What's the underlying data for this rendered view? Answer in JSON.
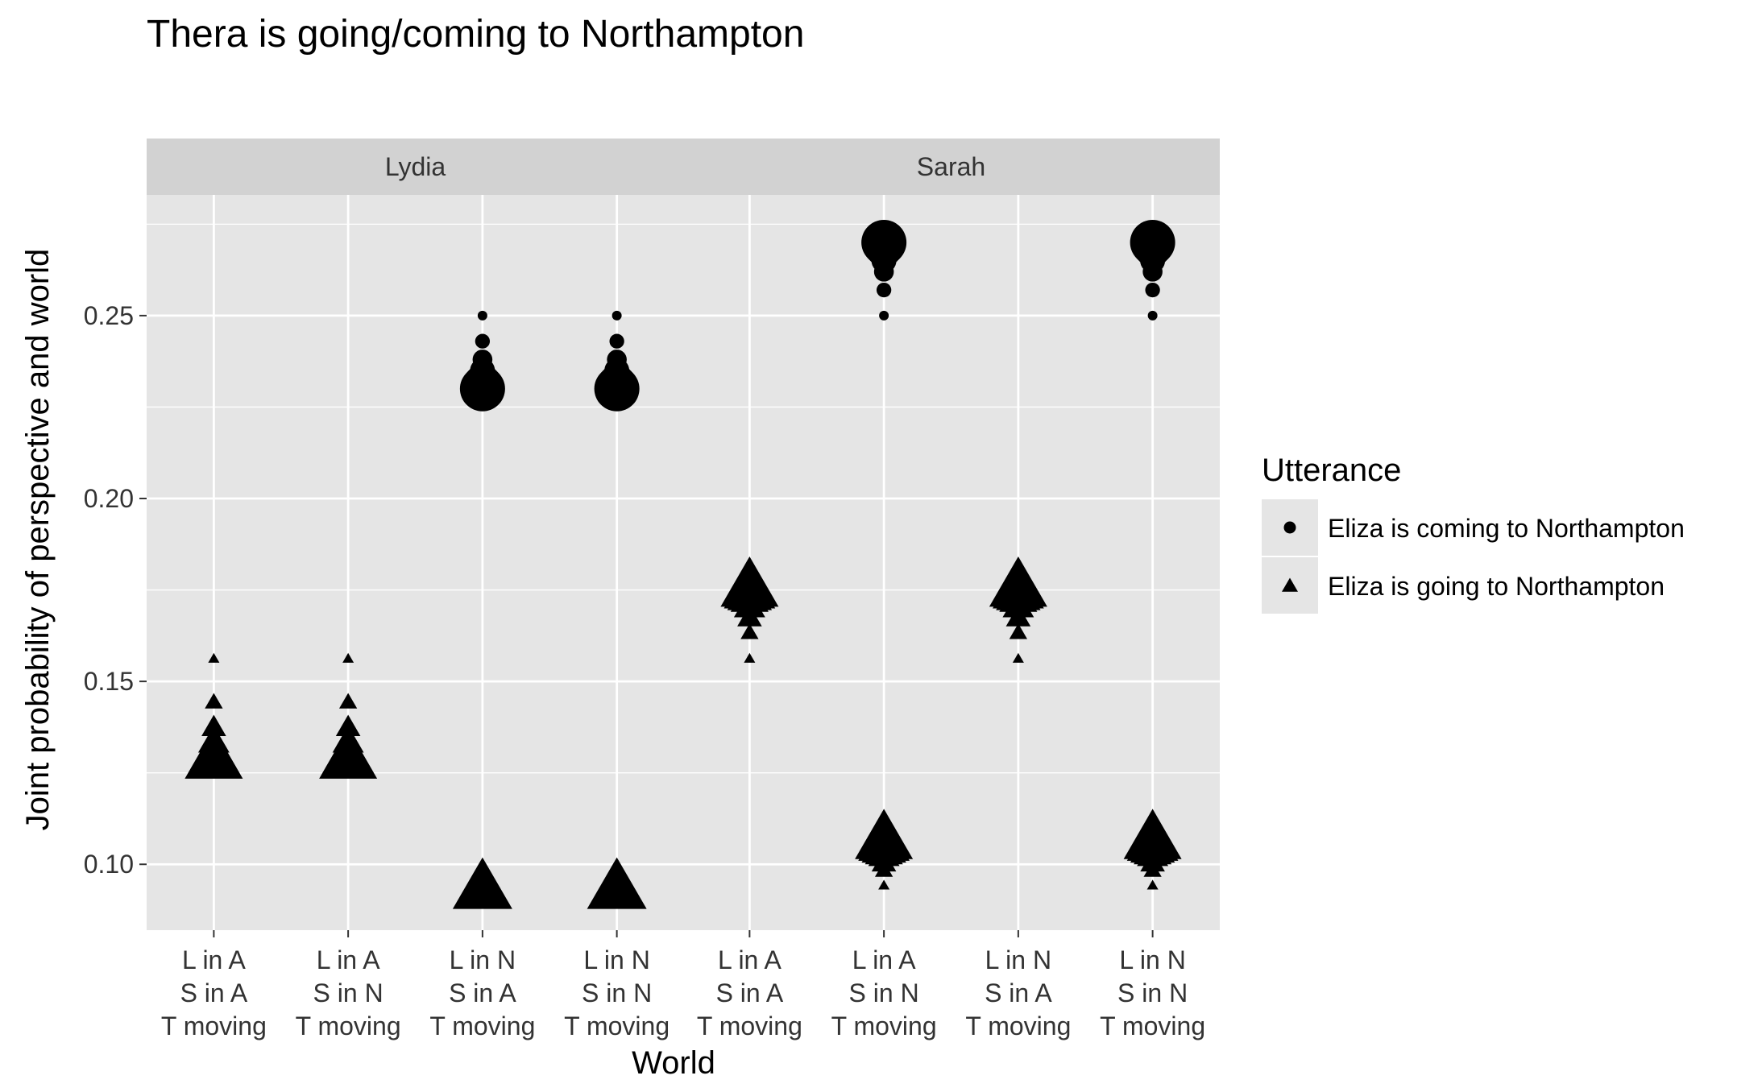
{
  "chart_data": {
    "type": "scatter",
    "title": "Thera is going/coming to Northampton",
    "xlabel": "World",
    "ylabel": "Joint probability of perspective and world",
    "ylim": [
      0.082,
      0.283
    ],
    "yticks": [
      0.1,
      0.15,
      0.2,
      0.25
    ],
    "ytick_labels": [
      "0.10",
      "0.15",
      "0.20",
      "0.25"
    ],
    "grid": true,
    "legend": {
      "title": "Utterance",
      "placement": "right",
      "entries": [
        {
          "label": "Eliza is coming to Northampton",
          "shape": "circle"
        },
        {
          "label": "Eliza is going to Northampton",
          "shape": "triangle"
        }
      ]
    },
    "categories": [
      [
        "L in A",
        "S in A",
        "T moving"
      ],
      [
        "L in A",
        "S in N",
        "T moving"
      ],
      [
        "L in N",
        "S in A",
        "T moving"
      ],
      [
        "L in N",
        "S in N",
        "T moving"
      ]
    ],
    "panels": [
      {
        "name": "Lydia",
        "series": [
          {
            "name": "Eliza is coming to Northampton",
            "shape": "circle",
            "points": [
              {
                "x": 3,
                "y": [
                  0.25,
                  0.243,
                  0.238,
                  0.235,
                  0.233,
                  0.232,
                  0.231,
                  0.23
                ]
              },
              {
                "x": 4,
                "y": [
                  0.25,
                  0.243,
                  0.238,
                  0.235,
                  0.233,
                  0.232,
                  0.231,
                  0.23
                ]
              }
            ]
          },
          {
            "name": "Eliza is going to Northampton",
            "shape": "triangle",
            "points": [
              {
                "x": 1,
                "y": [
                  0.156,
                  0.144,
                  0.137,
                  0.133,
                  0.131,
                  0.13,
                  0.129,
                  0.128
                ]
              },
              {
                "x": 2,
                "y": [
                  0.156,
                  0.144,
                  0.137,
                  0.133,
                  0.131,
                  0.13,
                  0.129,
                  0.128
                ]
              },
              {
                "x": 3,
                "y": [
                  0.0925
                ]
              },
              {
                "x": 4,
                "y": [
                  0.0925
                ]
              }
            ]
          }
        ]
      },
      {
        "name": "Sarah",
        "series": [
          {
            "name": "Eliza is coming to Northampton",
            "shape": "circle",
            "points": [
              {
                "x": 2,
                "y": [
                  0.25,
                  0.257,
                  0.262,
                  0.265,
                  0.267,
                  0.268,
                  0.269,
                  0.27
                ]
              },
              {
                "x": 4,
                "y": [
                  0.25,
                  0.257,
                  0.262,
                  0.265,
                  0.267,
                  0.268,
                  0.269,
                  0.27
                ]
              }
            ]
          },
          {
            "name": "Eliza is going to Northampton",
            "shape": "triangle",
            "points": [
              {
                "x": 1,
                "y": [
                  0.156,
                  0.163,
                  0.167,
                  0.17,
                  0.172,
                  0.173,
                  0.174,
                  0.175
                ]
              },
              {
                "x": 3,
                "y": [
                  0.156,
                  0.163,
                  0.167,
                  0.17,
                  0.172,
                  0.173,
                  0.174,
                  0.175
                ]
              },
              {
                "x": 2,
                "y": [
                  0.094,
                  0.098,
                  0.1,
                  0.102,
                  0.103,
                  0.104,
                  0.105,
                  0.106
                ]
              },
              {
                "x": 4,
                "y": [
                  0.094,
                  0.098,
                  0.1,
                  0.102,
                  0.103,
                  0.104,
                  0.105,
                  0.106
                ]
              }
            ]
          }
        ]
      }
    ],
    "colors": {
      "panel_bg": "#e5e5e5",
      "strip_bg": "#d2d2d2",
      "grid": "#ffffff",
      "points": "#000000",
      "text": "#333333",
      "title": "#000000"
    }
  }
}
